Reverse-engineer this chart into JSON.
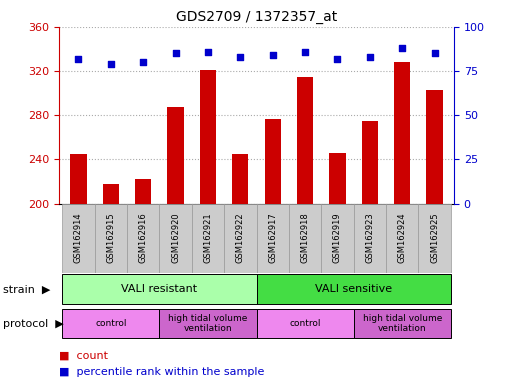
{
  "title": "GDS2709 / 1372357_at",
  "samples": [
    "GSM162914",
    "GSM162915",
    "GSM162916",
    "GSM162920",
    "GSM162921",
    "GSM162922",
    "GSM162917",
    "GSM162918",
    "GSM162919",
    "GSM162923",
    "GSM162924",
    "GSM162925"
  ],
  "counts": [
    245,
    218,
    222,
    287,
    321,
    245,
    277,
    315,
    246,
    275,
    328,
    303
  ],
  "percentiles": [
    82,
    79,
    80,
    85,
    86,
    83,
    84,
    86,
    82,
    83,
    88,
    85
  ],
  "ylim_left": [
    200,
    360
  ],
  "ylim_right": [
    0,
    100
  ],
  "yticks_left": [
    200,
    240,
    280,
    320,
    360
  ],
  "yticks_right": [
    0,
    25,
    50,
    75,
    100
  ],
  "bar_color": "#cc0000",
  "dot_color": "#0000cc",
  "bar_width": 0.5,
  "strain_groups": [
    {
      "label": "VALI resistant",
      "start": 0,
      "end": 6,
      "color": "#aaffaa"
    },
    {
      "label": "VALI sensitive",
      "start": 6,
      "end": 12,
      "color": "#44dd44"
    }
  ],
  "protocol_groups": [
    {
      "label": "control",
      "start": 0,
      "end": 3,
      "color": "#ee88ee"
    },
    {
      "label": "high tidal volume\nventilation",
      "start": 3,
      "end": 6,
      "color": "#cc66cc"
    },
    {
      "label": "control",
      "start": 6,
      "end": 9,
      "color": "#ee88ee"
    },
    {
      "label": "high tidal volume\nventilation",
      "start": 9,
      "end": 12,
      "color": "#cc66cc"
    }
  ],
  "strain_label": "strain",
  "protocol_label": "protocol",
  "legend_count_label": "count",
  "legend_percentile_label": "percentile rank within the sample",
  "grid_color": "#aaaaaa",
  "left_axis_color": "#cc0000",
  "right_axis_color": "#0000cc",
  "tick_bg_color": "#cccccc",
  "tick_border_color": "#999999"
}
